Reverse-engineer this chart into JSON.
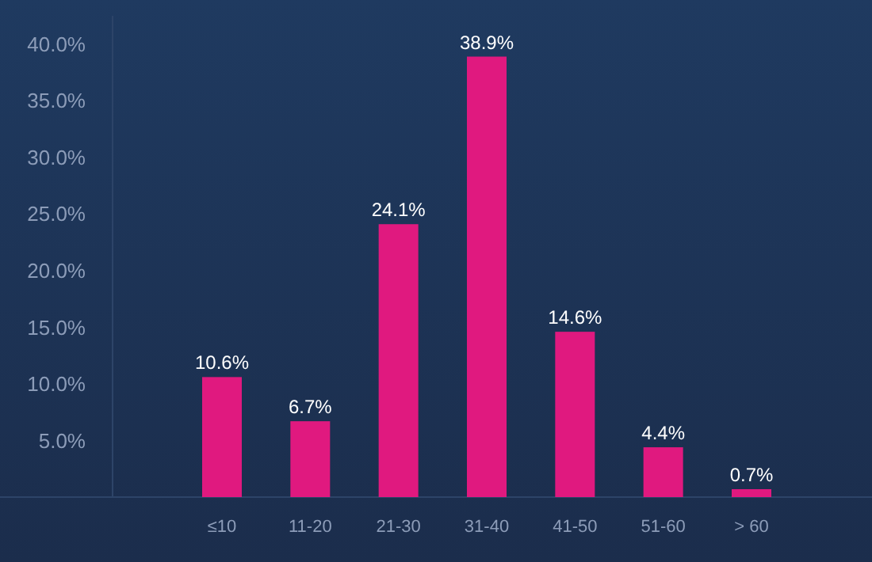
{
  "chart_data": {
    "type": "bar",
    "categories": [
      "≤10",
      "11-20",
      "21-30",
      "31-40",
      "41-50",
      "51-60",
      "> 60"
    ],
    "values": [
      10.6,
      6.7,
      24.1,
      38.9,
      14.6,
      4.4,
      0.7
    ],
    "value_labels": [
      "10.6%",
      "6.7%",
      "24.1%",
      "38.9%",
      "14.6%",
      "4.4%",
      "0.7%"
    ],
    "color": "#e0197f",
    "ylim": [
      0,
      42.5
    ],
    "yticks": [
      {
        "value": 5,
        "label": "5.0%"
      },
      {
        "value": 10,
        "label": "10.0%"
      },
      {
        "value": 15,
        "label": "15.0%"
      },
      {
        "value": 20,
        "label": "20.0%"
      },
      {
        "value": 25,
        "label": "25.0%"
      },
      {
        "value": 30,
        "label": "30.0%"
      },
      {
        "value": 35,
        "label": "35.0%"
      },
      {
        "value": 40,
        "label": "40.0%"
      }
    ],
    "grid": false
  }
}
